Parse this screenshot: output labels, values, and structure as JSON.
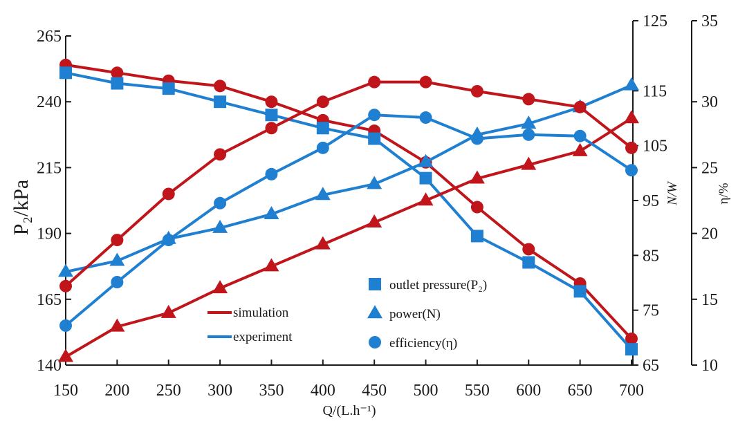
{
  "chart_data": {
    "type": "line",
    "x": [
      150,
      200,
      250,
      300,
      350,
      400,
      450,
      500,
      550,
      600,
      650,
      700
    ],
    "xlabel": "Q/(L.h⁻¹)",
    "axes": {
      "left": {
        "label": "P₂/kPa",
        "ylim": [
          140,
          265
        ],
        "ticks": [
          140,
          165,
          190,
          215,
          240,
          265
        ]
      },
      "right_inner": {
        "label": "N/W",
        "ylim": [
          65,
          125
        ],
        "ticks": [
          65,
          75,
          85,
          95,
          105,
          115,
          125
        ]
      },
      "right_outer": {
        "label": "η/%",
        "ylim": [
          10,
          35
        ],
        "ticks": [
          10,
          15,
          20,
          25,
          30,
          35
        ]
      }
    },
    "colors": {
      "simulation": "#c0151b",
      "experiment": "#1f7fd0"
    },
    "series": [
      {
        "name": "outlet pressure sim",
        "group": "simulation",
        "axis": "left",
        "marker": "circle",
        "values": [
          254,
          251,
          248,
          246,
          240,
          233,
          229,
          217,
          200,
          184,
          171,
          150
        ]
      },
      {
        "name": "outlet pressure exp",
        "group": "experiment",
        "axis": "left",
        "marker": "square",
        "values": [
          251,
          247,
          245,
          240,
          235,
          230,
          226,
          211,
          189,
          179,
          168,
          146
        ]
      },
      {
        "name": "power sim",
        "group": "simulation",
        "axis": "right_inner",
        "marker": "triangle",
        "values": [
          66.5,
          72,
          74.5,
          79,
          83,
          87,
          91,
          95,
          99,
          101.5,
          104,
          110
        ]
      },
      {
        "name": "power exp",
        "group": "experiment",
        "axis": "right_inner",
        "marker": "triangle",
        "values": [
          82,
          84,
          88,
          90,
          92.5,
          96,
          98,
          102,
          107,
          109,
          112,
          116
        ]
      },
      {
        "name": "efficiency sim",
        "group": "simulation",
        "axis": "right_outer",
        "marker": "circle",
        "values": [
          16,
          19.5,
          23,
          26,
          28,
          30,
          31.5,
          31.5,
          30.8,
          30.2,
          29.6,
          26.5
        ]
      },
      {
        "name": "efficiency exp",
        "group": "experiment",
        "axis": "right_outer",
        "marker": "circle",
        "values": [
          13,
          16.3,
          19.5,
          22.3,
          24.5,
          26.5,
          29,
          28.8,
          27.2,
          27.5,
          27.4,
          24.8
        ]
      }
    ],
    "legend": {
      "lines": [
        {
          "label": "simulation",
          "group": "simulation"
        },
        {
          "label": "experiment",
          "group": "experiment"
        }
      ],
      "markers": [
        {
          "label": "outlet pressure(P₂)",
          "marker": "square"
        },
        {
          "label": "power(N)",
          "marker": "triangle"
        },
        {
          "label": "efficiency(η)",
          "marker": "circle"
        }
      ]
    }
  }
}
